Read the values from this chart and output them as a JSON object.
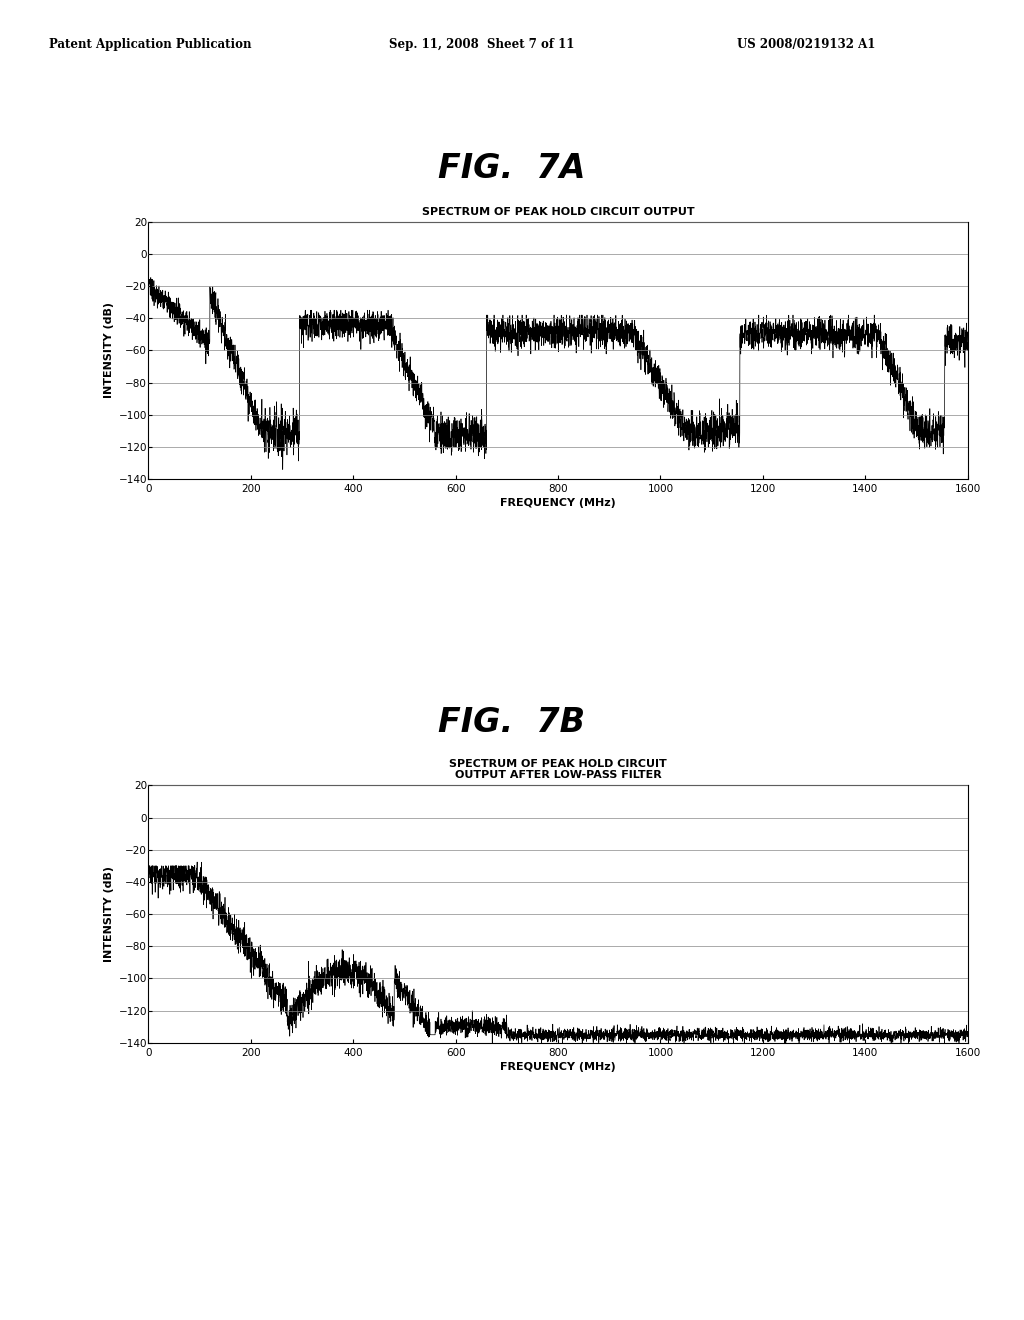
{
  "header_left": "Patent Application Publication",
  "header_center": "Sep. 11, 2008  Sheet 7 of 11",
  "header_right": "US 2008/0219132 A1",
  "fig7a_label": "FIG.  7A",
  "fig7b_label": "FIG.  7B",
  "fig7a_title": "SPECTRUM OF PEAK HOLD CIRCUIT OUTPUT",
  "fig7b_title": "SPECTRUM OF PEAK HOLD CIRCUIT\nOUTPUT AFTER LOW-PASS FILTER",
  "xlabel": "FREQUENCY (MHz)",
  "ylabel": "INTENSITY (dB)",
  "xlim": [
    0,
    1600
  ],
  "ylim": [
    -140,
    20
  ],
  "xticks": [
    0,
    200,
    400,
    600,
    800,
    1000,
    1200,
    1400,
    1600
  ],
  "yticks": [
    20,
    0,
    -20,
    -40,
    -60,
    -80,
    -100,
    -120,
    -140
  ],
  "background_color": "#ffffff",
  "line_color": "#000000"
}
